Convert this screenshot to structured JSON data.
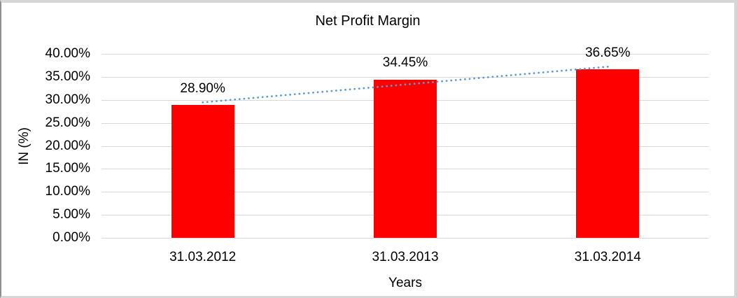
{
  "chart_data": {
    "type": "bar",
    "title": "Net Profit Margin",
    "xlabel": "Years",
    "ylabel": "IN (%)",
    "categories": [
      "31.03.2012",
      "31.03.2013",
      "31.03.2014"
    ],
    "values": [
      28.9,
      34.45,
      36.65
    ],
    "data_labels": [
      "28.90%",
      "34.45%",
      "36.65%"
    ],
    "ylim": [
      0,
      40
    ],
    "ytick_step": 5,
    "ytick_labels": [
      "0.00%",
      "5.00%",
      "10.00%",
      "15.00%",
      "20.00%",
      "25.00%",
      "30.00%",
      "35.00%",
      "40.00%"
    ],
    "grid": true,
    "legend": "none",
    "trendline": {
      "type": "linear",
      "style": "dotted"
    },
    "colors": {
      "bar": "#ff0000",
      "trendline": "#5b9bd5",
      "gridline": "#d9d9d9",
      "text": "#000000"
    }
  }
}
